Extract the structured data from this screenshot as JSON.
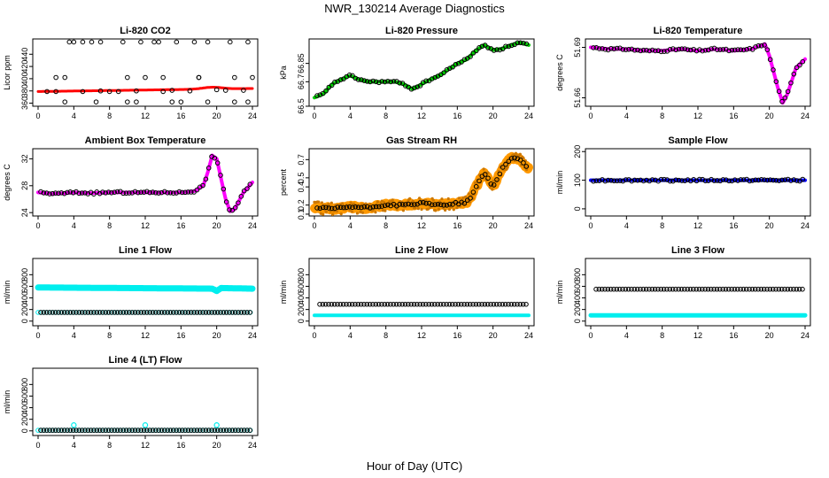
{
  "title": "NWR_130214  Average Diagnostics",
  "xlabel": "Hour of Day (UTC)",
  "x_ticks": [
    0,
    4,
    8,
    12,
    16,
    20,
    24
  ],
  "chart_data": [
    {
      "id": "co2",
      "type": "scatter",
      "title": "Li-820 CO2",
      "ylabel": "Licor ppm",
      "ylim": [
        355,
        465
      ],
      "yticks": [
        360,
        380,
        400,
        420,
        440
      ],
      "series": [
        {
          "name": "band",
          "color": "#ff0000",
          "style": "band",
          "x_range": [
            0,
            24
          ],
          "y_start": 379,
          "y_end": 384,
          "width": 3,
          "bump": {
            "x": 19.5,
            "amp": 3,
            "w": 1.5
          }
        },
        {
          "name": "points",
          "color": "#000000",
          "style": "circles",
          "step": 1,
          "x_start": 1,
          "x_end": 24,
          "pattern": [
            379,
            379,
            402,
            460,
            379,
            460,
            380,
            379,
            379,
            362,
            380,
            402,
            460,
            379,
            381,
            362,
            380,
            402,
            460,
            382,
            381,
            362,
            381,
            402
          ]
        }
      ]
    },
    {
      "id": "pressure",
      "type": "scatter",
      "title": "Li-820 Pressure",
      "ylabel": "kPa",
      "ylim": [
        66.5,
        67.05
      ],
      "yticks": [
        66.5,
        66.7,
        66.85
      ],
      "series": [
        {
          "name": "band",
          "color": "#00cc00",
          "style": "band",
          "width": 4,
          "knots": [
            [
              0,
              66.57
            ],
            [
              1,
              66.6
            ],
            [
              2,
              66.68
            ],
            [
              3,
              66.72
            ],
            [
              4,
              66.75
            ],
            [
              5,
              66.72
            ],
            [
              6,
              66.7
            ],
            [
              7,
              66.7
            ],
            [
              8,
              66.7
            ],
            [
              9,
              66.7
            ],
            [
              10,
              66.68
            ],
            [
              11,
              66.64
            ],
            [
              12,
              66.68
            ],
            [
              13,
              66.72
            ],
            [
              14,
              66.75
            ],
            [
              15,
              66.8
            ],
            [
              16,
              66.85
            ],
            [
              17,
              66.88
            ],
            [
              18,
              66.95
            ],
            [
              19,
              67.0
            ],
            [
              20,
              66.96
            ],
            [
              21,
              66.97
            ],
            [
              22,
              67.0
            ],
            [
              23,
              67.02
            ],
            [
              24,
              67.0
            ]
          ]
        },
        {
          "name": "points",
          "color": "#000000",
          "style": "circles_on_knots",
          "every": 0.33
        }
      ]
    },
    {
      "id": "temp",
      "type": "scatter",
      "title": "Li-820 Temperature",
      "ylabel": "degrees C",
      "ylim": [
        51.655,
        51.695
      ],
      "yticks": [
        51.66,
        51.69
      ],
      "series": [
        {
          "name": "band",
          "color": "#ff00ff",
          "style": "band",
          "width": 4,
          "knots": [
            [
              0,
              51.69
            ],
            [
              2,
              51.689
            ],
            [
              4,
              51.689
            ],
            [
              6,
              51.688
            ],
            [
              8,
              51.688
            ],
            [
              10,
              51.689
            ],
            [
              12,
              51.688
            ],
            [
              14,
              51.689
            ],
            [
              16,
              51.688
            ],
            [
              18,
              51.689
            ],
            [
              19.5,
              51.692
            ],
            [
              20,
              51.685
            ],
            [
              21,
              51.665
            ],
            [
              21.5,
              51.657
            ],
            [
              22,
              51.662
            ],
            [
              23,
              51.678
            ],
            [
              24,
              51.683
            ]
          ]
        },
        {
          "name": "points",
          "color": "#000000",
          "style": "circles_on_knots",
          "every": 0.33
        }
      ]
    },
    {
      "id": "boxtemp",
      "type": "scatter",
      "title": "Ambient Box Temperature",
      "ylabel": "degrees C",
      "ylim": [
        23.5,
        33.5
      ],
      "yticks": [
        24,
        28,
        32
      ],
      "series": [
        {
          "name": "band",
          "color": "#ff00ff",
          "style": "band",
          "width": 4,
          "knots": [
            [
              0,
              27
            ],
            [
              2,
              26.8
            ],
            [
              4,
              27
            ],
            [
              6,
              26.9
            ],
            [
              8,
              27
            ],
            [
              10,
              27
            ],
            [
              12,
              27
            ],
            [
              14,
              27
            ],
            [
              16,
              27
            ],
            [
              17.5,
              27.2
            ],
            [
              18.5,
              28
            ],
            [
              19,
              30
            ],
            [
              19.5,
              32.5
            ],
            [
              20,
              32
            ],
            [
              20.5,
              29
            ],
            [
              21,
              26
            ],
            [
              21.5,
              24.2
            ],
            [
              22,
              24.5
            ],
            [
              23,
              27
            ],
            [
              24,
              28.5
            ]
          ]
        },
        {
          "name": "points",
          "color": "#000000",
          "style": "circles_on_knots",
          "every": 0.33
        }
      ]
    },
    {
      "id": "rh",
      "type": "scatter",
      "title": "Gas Stream RH",
      "ylabel": "percent",
      "ylim": [
        0.08,
        0.82
      ],
      "yticks": [
        0.1,
        0.2,
        0.4,
        0.5,
        0.7
      ],
      "series": [
        {
          "name": "band",
          "color": "#ff9900",
          "style": "noisy",
          "width": 10,
          "knots": [
            [
              0,
              0.17
            ],
            [
              2,
              0.16
            ],
            [
              4,
              0.18
            ],
            [
              6,
              0.17
            ],
            [
              8,
              0.2
            ],
            [
              10,
              0.2
            ],
            [
              12,
              0.22
            ],
            [
              14,
              0.2
            ],
            [
              16,
              0.22
            ],
            [
              17,
              0.23
            ],
            [
              17.5,
              0.28
            ],
            [
              18,
              0.38
            ],
            [
              19,
              0.56
            ],
            [
              19.5,
              0.48
            ],
            [
              20,
              0.4
            ],
            [
              21,
              0.6
            ],
            [
              22,
              0.72
            ],
            [
              23,
              0.7
            ],
            [
              24,
              0.6
            ]
          ]
        },
        {
          "name": "points",
          "color": "#000000",
          "style": "circles_on_knots",
          "every": 0.33
        }
      ]
    },
    {
      "id": "sample",
      "type": "scatter",
      "title": "Sample Flow",
      "ylabel": "ml/min",
      "ylim": [
        -25,
        210
      ],
      "yticks": [
        0,
        100,
        200
      ],
      "series": [
        {
          "name": "band",
          "color": "#0000ff",
          "style": "band",
          "width": 4,
          "knots": [
            [
              0,
              100
            ],
            [
              24,
              100
            ]
          ]
        },
        {
          "name": "points",
          "color": "#000000",
          "style": "circles_on_knots",
          "every": 0.33
        }
      ]
    },
    {
      "id": "l1",
      "type": "scatter",
      "title": "Line 1 Flow",
      "ylabel": "ml/min",
      "ylim": [
        -80,
        1080
      ],
      "yticks": [
        0,
        200,
        400,
        600,
        800
      ],
      "series": [
        {
          "name": "cyan",
          "color": "#00eeee",
          "style": "band",
          "width": 7,
          "knots": [
            [
              0,
              580
            ],
            [
              19.5,
              560
            ],
            [
              20,
              520
            ],
            [
              20.5,
              570
            ],
            [
              24,
              560
            ]
          ]
        },
        {
          "name": "low",
          "color": "#00eeee",
          "style": "circles_flat",
          "y": 150,
          "x_start": 0,
          "x_end": 24
        },
        {
          "name": "black",
          "color": "#000000",
          "style": "circles_flat",
          "y": 150,
          "x_start": 0.3,
          "x_end": 24
        }
      ]
    },
    {
      "id": "l2",
      "type": "scatter",
      "title": "Line 2 Flow",
      "ylabel": "ml/min",
      "ylim": [
        -80,
        1080
      ],
      "yticks": [
        0,
        200,
        400,
        600,
        800
      ],
      "series": [
        {
          "name": "cyan",
          "color": "#00eeee",
          "style": "band",
          "width": 4,
          "knots": [
            [
              0,
              100
            ],
            [
              24,
              100
            ]
          ]
        },
        {
          "name": "black",
          "color": "#000000",
          "style": "circles_flat",
          "y": 290,
          "x_start": 0.6,
          "x_end": 24
        }
      ]
    },
    {
      "id": "l3",
      "type": "scatter",
      "title": "Line 3 Flow",
      "ylabel": "ml/min",
      "ylim": [
        -80,
        1080
      ],
      "yticks": [
        0,
        200,
        400,
        600,
        800
      ],
      "series": [
        {
          "name": "cyan",
          "color": "#00eeee",
          "style": "band",
          "width": 5,
          "knots": [
            [
              0,
              100
            ],
            [
              24,
              100
            ]
          ]
        },
        {
          "name": "black",
          "color": "#000000",
          "style": "circles_flat",
          "y": 550,
          "x_start": 0.6,
          "x_end": 24
        }
      ]
    },
    {
      "id": "l4",
      "type": "scatter",
      "title": "Line 4 (LT) Flow",
      "ylabel": "ml/min",
      "ylim": [
        -80,
        1080
      ],
      "yticks": [
        0,
        200,
        400,
        600,
        800
      ],
      "series": [
        {
          "name": "cyan",
          "color": "#00eeee",
          "style": "circles_flat",
          "y": 10,
          "x_start": 0,
          "x_end": 24
        },
        {
          "name": "black",
          "color": "#000000",
          "style": "circles_flat",
          "y": 10,
          "x_start": 0.3,
          "x_end": 24
        },
        {
          "name": "spikes",
          "color": "#00eeee",
          "style": "points",
          "pts": [
            [
              4,
              100
            ],
            [
              12,
              100
            ],
            [
              20,
              100
            ]
          ]
        }
      ]
    }
  ]
}
